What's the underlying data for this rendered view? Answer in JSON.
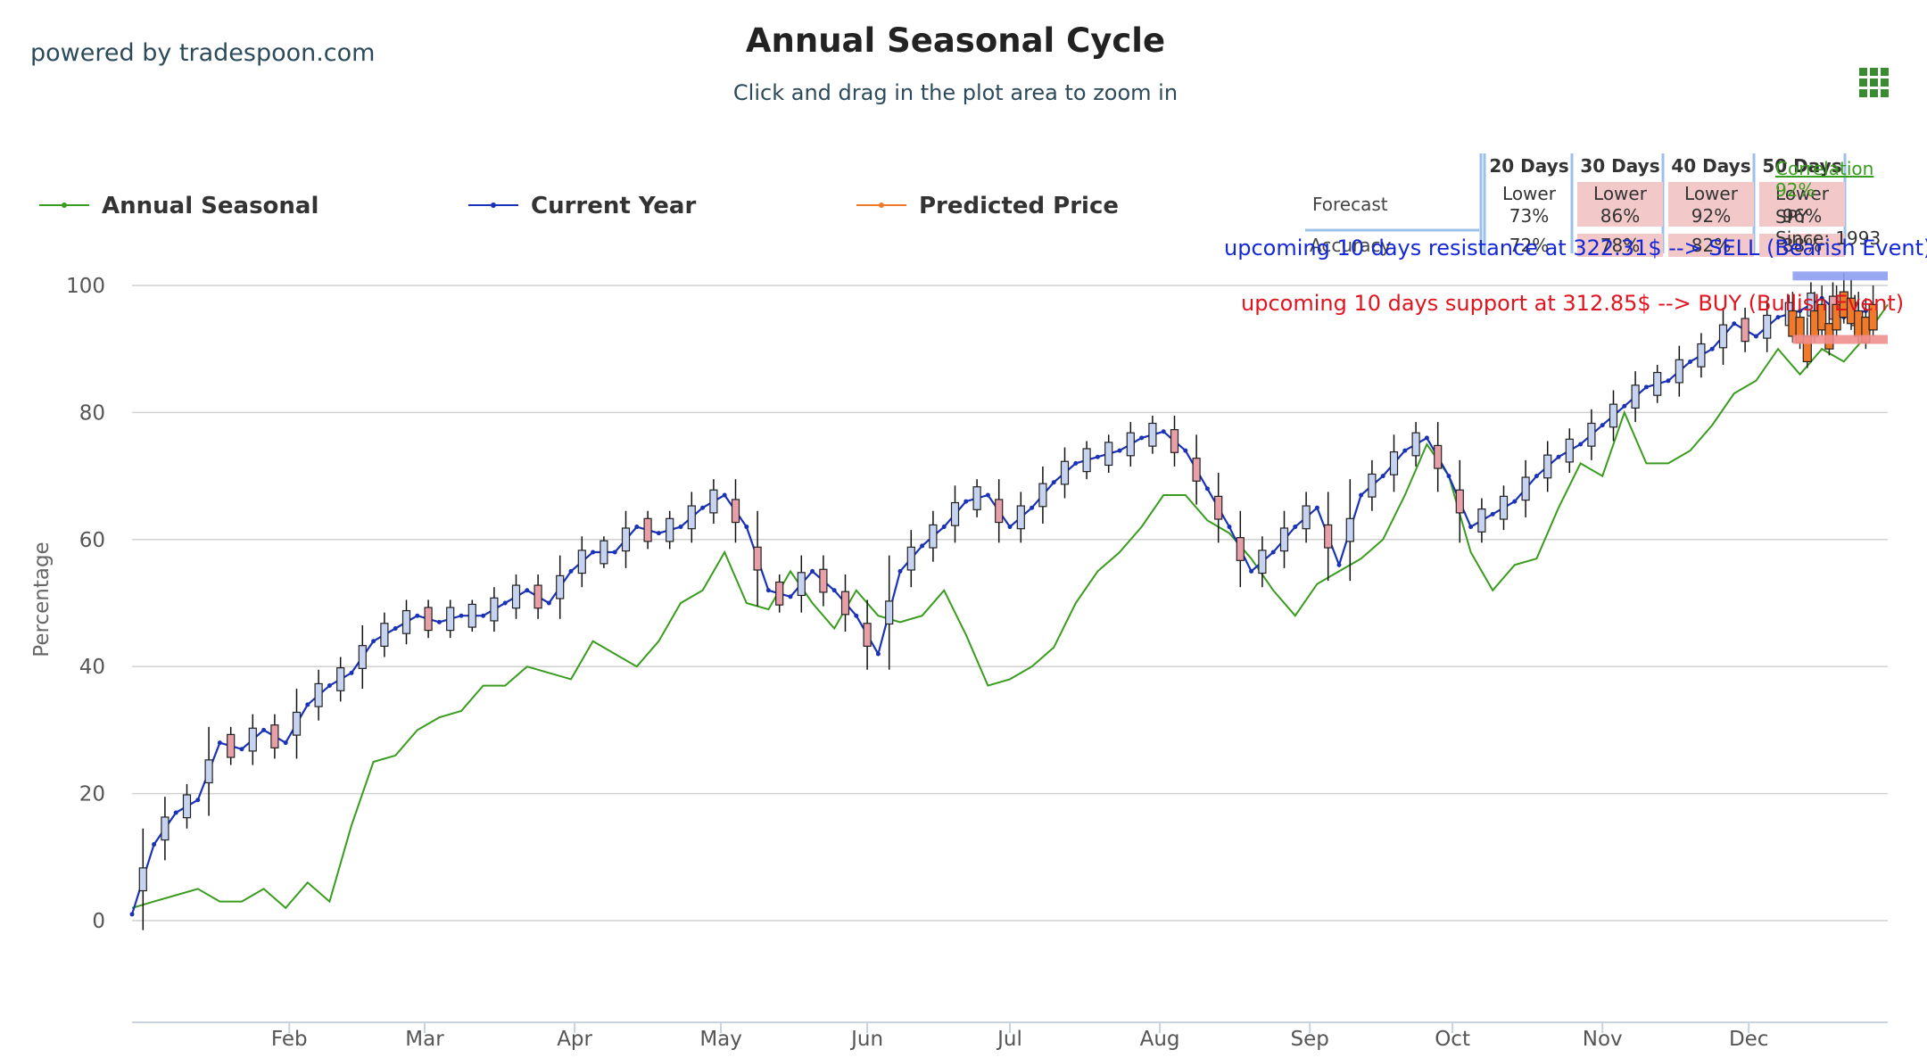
{
  "brand_text": "powered by tradespoon.com",
  "menu_icon": "grid-menu-icon",
  "colors": {
    "seasonal": "#3a9c1e",
    "current": "#1a32b8",
    "predicted": "#f07a2a",
    "resistance_text": "#1428d8",
    "support_text": "#e0141e",
    "forecast_cell_red": "#f2c8c8",
    "header_divider": "#9cc0e8"
  },
  "forecast_table": {
    "headers": [
      "20 Days",
      "30 Days",
      "40 Days",
      "50 Days"
    ],
    "forecast_label": "Forecast",
    "accuracy_label": "Accuracy",
    "forecast": [
      {
        "dir": "Lower",
        "pct": "73%"
      },
      {
        "dir": "Lower",
        "pct": "86%"
      },
      {
        "dir": "Lower",
        "pct": "92%"
      },
      {
        "dir": "Lower",
        "pct": "96%"
      }
    ],
    "accuracy": [
      "72%",
      "78%",
      "82%",
      "88%"
    ],
    "correlation_label": "Correlation",
    "correlation_value": "92%",
    "symbol": "SPY",
    "since": "Since: 1993"
  },
  "resistance_text": "upcoming 10 days resistance at 322.31$ --> SELL (Bearish Event)",
  "support_text": "upcoming 10 days support at 312.85$ --> BUY (Bullish Event)",
  "chart_data": {
    "type": "line",
    "title": "Annual Seasonal Cycle",
    "subtitle": "Click and drag in the plot area to zoom in",
    "ylabel": "Percentage",
    "xlabel": "",
    "ylim": [
      -15,
      100
    ],
    "yticks": [
      0,
      20,
      40,
      60,
      80,
      100
    ],
    "xlim": [
      0,
      240
    ],
    "xticks": [
      {
        "label": "Feb",
        "x": 21.5
      },
      {
        "label": "Mar",
        "x": 40
      },
      {
        "label": "Apr",
        "x": 60.5
      },
      {
        "label": "May",
        "x": 80.5
      },
      {
        "label": "Jun",
        "x": 100.5
      },
      {
        "label": "Jul",
        "x": 120
      },
      {
        "label": "Aug",
        "x": 140.5
      },
      {
        "label": "Sep",
        "x": 161
      },
      {
        "label": "Oct",
        "x": 180.5
      },
      {
        "label": "Nov",
        "x": 201
      },
      {
        "label": "Dec",
        "x": 221
      }
    ],
    "legend": {
      "placement": "top-left"
    },
    "series": [
      {
        "name": "Annual Seasonal",
        "x": [
          0,
          3,
          6,
          9,
          12,
          15,
          18,
          21,
          24,
          27,
          30,
          33,
          36,
          39,
          42,
          45,
          48,
          51,
          54,
          57,
          60,
          63,
          66,
          69,
          72,
          75,
          78,
          81,
          84,
          87,
          90,
          93,
          96,
          99,
          102,
          105,
          108,
          111,
          114,
          117,
          120,
          123,
          126,
          129,
          132,
          135,
          138,
          141,
          144,
          147,
          150,
          153,
          156,
          159,
          162,
          165,
          168,
          171,
          174,
          177,
          180,
          183,
          186,
          189,
          192,
          195,
          198,
          201,
          204,
          207,
          210,
          213,
          216,
          219,
          222,
          225,
          228,
          231,
          234,
          237,
          240
        ],
        "values": [
          2,
          3,
          4,
          5,
          3,
          3,
          5,
          2,
          6,
          3,
          15,
          25,
          26,
          30,
          32,
          33,
          37,
          37,
          40,
          39,
          38,
          44,
          42,
          40,
          44,
          50,
          52,
          58,
          50,
          49,
          55,
          50,
          46,
          52,
          48,
          47,
          48,
          52,
          45,
          37,
          38,
          40,
          43,
          50,
          55,
          58,
          62,
          67,
          67,
          63,
          61,
          57,
          52,
          48,
          53,
          55,
          57,
          60,
          67,
          75,
          70,
          58,
          52,
          56,
          57,
          65,
          72,
          70,
          80,
          72,
          72,
          74,
          78,
          83,
          85,
          90,
          86,
          90,
          88,
          92,
          97
        ]
      },
      {
        "name": "Current Year",
        "x": [
          0,
          3,
          6,
          9,
          12,
          15,
          18,
          21,
          24,
          27,
          30,
          33,
          36,
          39,
          42,
          45,
          48,
          51,
          54,
          57,
          60,
          63,
          66,
          69,
          72,
          75,
          78,
          81,
          84,
          87,
          90,
          93,
          96,
          99,
          102,
          105,
          108,
          111,
          114,
          117,
          120,
          123,
          126,
          129,
          132,
          135,
          138,
          141,
          144,
          147,
          150,
          153,
          156,
          159,
          162,
          165,
          168,
          171,
          174,
          177,
          180,
          183,
          186,
          189,
          192,
          195,
          198,
          201,
          204,
          207,
          210,
          213,
          216,
          219,
          222,
          225,
          228,
          231,
          234,
          237
        ],
        "values": [
          1,
          12,
          17,
          19,
          28,
          27,
          30,
          28,
          34,
          37,
          39,
          44,
          46,
          48,
          47,
          48,
          48,
          50,
          52,
          50,
          55,
          58,
          58,
          62,
          61,
          62,
          65,
          67,
          62,
          52,
          51,
          55,
          52,
          48,
          42,
          55,
          59,
          62,
          66,
          67,
          62,
          65,
          69,
          72,
          73,
          74,
          76,
          77,
          74,
          68,
          62,
          55,
          58,
          62,
          65,
          56,
          67,
          70,
          74,
          76,
          70,
          62,
          64,
          66,
          70,
          73,
          75,
          78,
          81,
          84,
          85,
          88,
          90,
          94,
          92,
          95,
          96,
          98,
          95,
          96
        ]
      },
      {
        "name": "Predicted Price",
        "x": [
          227,
          228,
          229,
          230,
          231,
          232,
          233,
          234,
          235,
          236,
          237,
          238
        ],
        "values": [
          96,
          95,
          92,
          96,
          97,
          94,
          97,
          99,
          98,
          96,
          95,
          97
        ]
      }
    ],
    "annotations": [
      {
        "type": "band",
        "label": "resistance",
        "y": 101.5
      },
      {
        "type": "band",
        "label": "support",
        "y": 91.5
      }
    ]
  }
}
